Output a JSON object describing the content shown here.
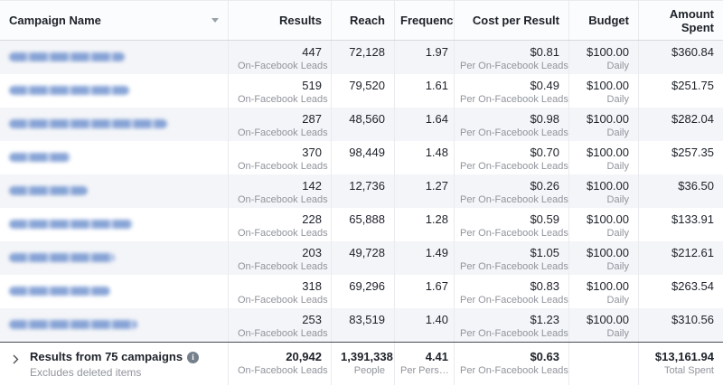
{
  "table": {
    "columns": [
      {
        "label": "Campaign Name"
      },
      {
        "label": "Results"
      },
      {
        "label": "Reach"
      },
      {
        "label": "Frequency"
      },
      {
        "label": "Cost per Result"
      },
      {
        "label": "Budget"
      },
      {
        "label": "Amount Spent"
      }
    ]
  },
  "row_labels": {
    "results_sub": "On-Facebook Leads",
    "cost_sub": "Per On-Facebook Leads",
    "budget_sub": "Daily"
  },
  "rows": [
    {
      "name_width": 128,
      "results": "447",
      "reach": "72,128",
      "frequency": "1.97",
      "cost_per_result": "$0.81",
      "budget": "$100.00",
      "amount_spent": "$360.84"
    },
    {
      "name_width": 133,
      "results": "519",
      "reach": "79,520",
      "frequency": "1.61",
      "cost_per_result": "$0.49",
      "budget": "$100.00",
      "amount_spent": "$251.75"
    },
    {
      "name_width": 175,
      "results": "287",
      "reach": "48,560",
      "frequency": "1.64",
      "cost_per_result": "$0.98",
      "budget": "$100.00",
      "amount_spent": "$282.04"
    },
    {
      "name_width": 68,
      "results": "370",
      "reach": "98,449",
      "frequency": "1.48",
      "cost_per_result": "$0.70",
      "budget": "$100.00",
      "amount_spent": "$257.35"
    },
    {
      "name_width": 87,
      "results": "142",
      "reach": "12,736",
      "frequency": "1.27",
      "cost_per_result": "$0.26",
      "budget": "$100.00",
      "amount_spent": "$36.50"
    },
    {
      "name_width": 137,
      "results": "228",
      "reach": "65,888",
      "frequency": "1.28",
      "cost_per_result": "$0.59",
      "budget": "$100.00",
      "amount_spent": "$133.91"
    },
    {
      "name_width": 117,
      "results": "203",
      "reach": "49,728",
      "frequency": "1.49",
      "cost_per_result": "$1.05",
      "budget": "$100.00",
      "amount_spent": "$212.61"
    },
    {
      "name_width": 112,
      "results": "318",
      "reach": "69,296",
      "frequency": "1.67",
      "cost_per_result": "$0.83",
      "budget": "$100.00",
      "amount_spent": "$263.54"
    },
    {
      "name_width": 142,
      "results": "253",
      "reach": "83,519",
      "frequency": "1.40",
      "cost_per_result": "$1.23",
      "budget": "$100.00",
      "amount_spent": "$310.56"
    }
  ],
  "summary": {
    "title": "Results from 75 campaigns",
    "subtitle": "Excludes deleted items",
    "results": "20,942",
    "results_sub": "On-Facebook Leads",
    "reach": "1,391,338",
    "reach_sub": "People",
    "frequency": "4.41",
    "frequency_sub": "Per Pers…",
    "cost_per_result": "$0.63",
    "cost_sub": "Per On-Facebook Leads",
    "budget": "",
    "amount_spent": "$13,161.94",
    "spent_sub": "Total Spent"
  },
  "colors": {
    "campaign_link_blue": "#7495d0",
    "row_alt_bg": "#f4f5f8",
    "summary_top_border": "#464b52",
    "subtitle_gray": "#90949c",
    "text_dark": "#1d2129"
  }
}
